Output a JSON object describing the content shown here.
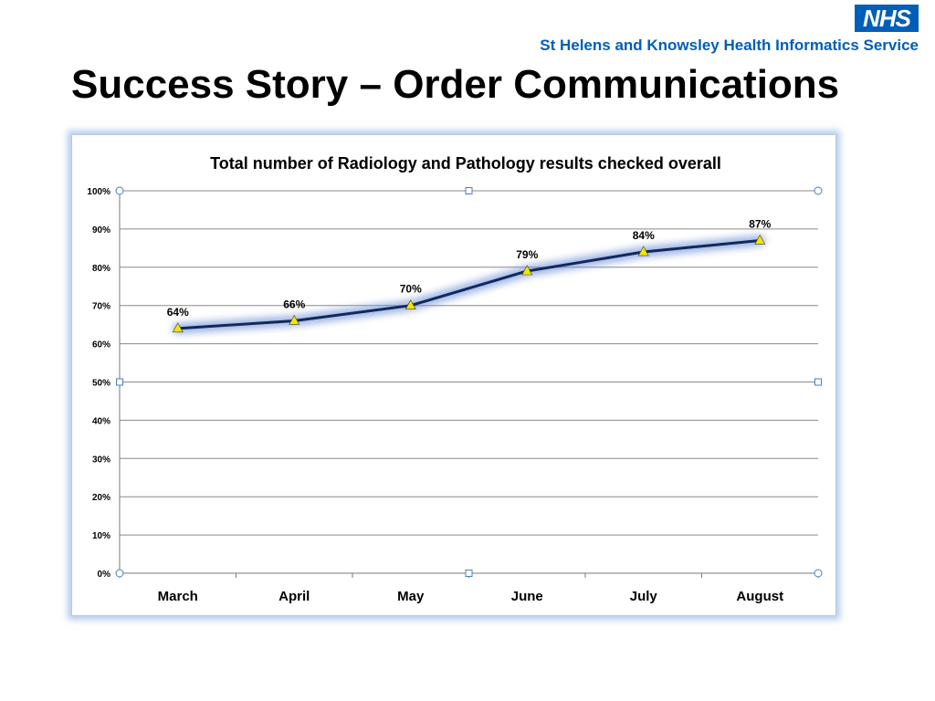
{
  "header": {
    "logo_text": "NHS",
    "org_name": "St Helens and Knowsley Health Informatics Service",
    "title": "Success Story – Order Communications"
  },
  "colors": {
    "nhs_blue": "#005EB8",
    "series_line": "#0F2A5C",
    "marker_fill": "#F2E600",
    "gridline": "#8a8a8a"
  },
  "chart_data": {
    "type": "line",
    "title": "Total number of  Radiology and Pathology results checked overall",
    "categories": [
      "March",
      "April",
      "May",
      "June",
      "July",
      "August"
    ],
    "series": [
      {
        "values": [
          64,
          66,
          70,
          79,
          84,
          87
        ],
        "labels": [
          "64%",
          "66%",
          "70%",
          "79%",
          "84%",
          "87%"
        ]
      }
    ],
    "y_ticks": [
      "0%",
      "10%",
      "20%",
      "30%",
      "40%",
      "50%",
      "60%",
      "70%",
      "80%",
      "90%",
      "100%"
    ],
    "ylim": [
      0,
      100
    ],
    "grid": true,
    "marker": "triangle",
    "legend": "none"
  }
}
